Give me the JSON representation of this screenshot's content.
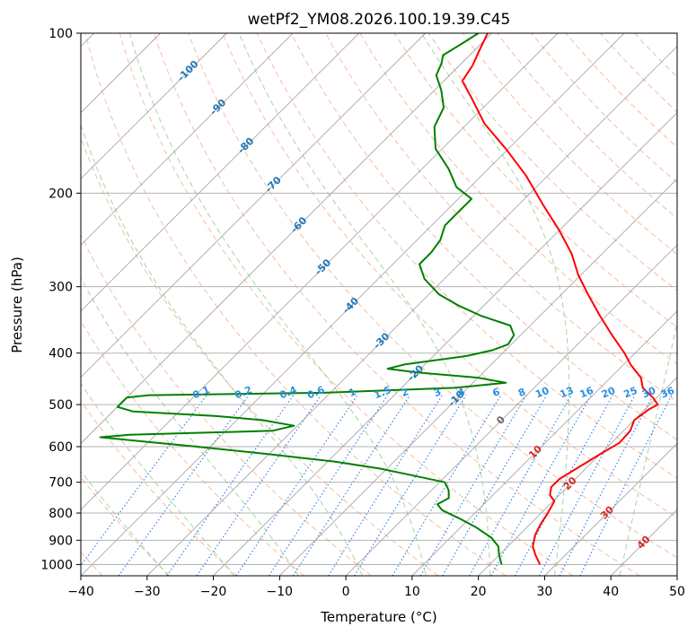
{
  "chart_data": {
    "type": "line",
    "title": "wetPf2_YM08.2026.100.19.39.C45",
    "xlabel": "Temperature (°C)",
    "ylabel": "Pressure (hPa)",
    "xlim": [
      -40,
      50
    ],
    "ylim": [
      1050,
      100
    ],
    "yscale": "log",
    "skew_note": "skew-T log-p diagram",
    "x_ticks": [
      -40,
      -30,
      -20,
      -10,
      0,
      10,
      20,
      30,
      40,
      50
    ],
    "y_ticks": [
      100,
      200,
      300,
      400,
      500,
      600,
      700,
      800,
      900,
      1000
    ],
    "isotherms_c": [
      -100,
      -90,
      -80,
      -70,
      -60,
      -50,
      -40,
      -30,
      -20,
      -10,
      0,
      10,
      20,
      30,
      40
    ],
    "isotherm_labels": [
      {
        "text": "-100",
        "t": -100,
        "p": 118,
        "color": "#1f77b4"
      },
      {
        "text": "-90",
        "t": -90,
        "p": 138,
        "color": "#1f77b4"
      },
      {
        "text": "-80",
        "t": -80,
        "p": 163,
        "color": "#1f77b4"
      },
      {
        "text": "-70",
        "t": -70,
        "p": 193,
        "color": "#1f77b4"
      },
      {
        "text": "-60",
        "t": -60,
        "p": 230,
        "color": "#1f77b4"
      },
      {
        "text": "-50",
        "t": -50,
        "p": 276,
        "color": "#1f77b4"
      },
      {
        "text": "-40",
        "t": -40,
        "p": 326,
        "color": "#1f77b4"
      },
      {
        "text": "-30",
        "t": -30,
        "p": 380,
        "color": "#1f77b4"
      },
      {
        "text": "-20",
        "t": -20,
        "p": 437,
        "color": "#1f77b4"
      },
      {
        "text": "-10",
        "t": -10,
        "p": 488,
        "color": "#1f77b4"
      },
      {
        "text": "0",
        "t": 0,
        "p": 536,
        "color": "#666666"
      },
      {
        "text": "10",
        "t": 10,
        "p": 615,
        "color": "#d62728"
      },
      {
        "text": "20",
        "t": 20,
        "p": 705,
        "color": "#d62728"
      },
      {
        "text": "30",
        "t": 30,
        "p": 800,
        "color": "#d62728"
      },
      {
        "text": "40",
        "t": 40,
        "p": 910,
        "color": "#d62728"
      }
    ],
    "mixing_ratio_labels": [
      "0.1",
      "0.2",
      "0.4",
      "0.6",
      "1",
      "1.5",
      "2",
      "3",
      "4",
      "6",
      "8",
      "10",
      "13",
      "16",
      "20",
      "25",
      "30",
      "36"
    ],
    "mixing_ratios_gkg": [
      0.1,
      0.2,
      0.4,
      0.6,
      1,
      1.5,
      2,
      3,
      4,
      6,
      8,
      10,
      13,
      16,
      20,
      25,
      30,
      36
    ],
    "dry_adiabats_theta_c": [
      -40,
      -30,
      -20,
      -10,
      0,
      10,
      20,
      30,
      40,
      50,
      60,
      70,
      80,
      90,
      100,
      110,
      120,
      130,
      140,
      150,
      160,
      170,
      180
    ],
    "moist_adiabats_c": [
      -30,
      -20,
      -10,
      0,
      10,
      20,
      30,
      40
    ],
    "series": [
      {
        "name": "Temperature",
        "color": "#ff0000",
        "points": [
          {
            "p": 1000,
            "t": 27.6
          },
          {
            "p": 960,
            "t": 25.5
          },
          {
            "p": 925,
            "t": 23.8
          },
          {
            "p": 880,
            "t": 22.4
          },
          {
            "p": 840,
            "t": 21.6
          },
          {
            "p": 800,
            "t": 21.0
          },
          {
            "p": 760,
            "t": 20.2
          },
          {
            "p": 740,
            "t": 18.6
          },
          {
            "p": 715,
            "t": 17.6
          },
          {
            "p": 690,
            "t": 17.6
          },
          {
            "p": 660,
            "t": 18.6
          },
          {
            "p": 620,
            "t": 20.0
          },
          {
            "p": 590,
            "t": 21.2
          },
          {
            "p": 560,
            "t": 21.0
          },
          {
            "p": 535,
            "t": 20.0
          },
          {
            "p": 510,
            "t": 20.6
          },
          {
            "p": 500,
            "t": 21.2
          },
          {
            "p": 485,
            "t": 19.4
          },
          {
            "p": 465,
            "t": 16.4
          },
          {
            "p": 445,
            "t": 14.6
          },
          {
            "p": 420,
            "t": 11.0
          },
          {
            "p": 400,
            "t": 8.4
          },
          {
            "p": 370,
            "t": 3.8
          },
          {
            "p": 340,
            "t": -1.0
          },
          {
            "p": 310,
            "t": -6.0
          },
          {
            "p": 285,
            "t": -10.4
          },
          {
            "p": 260,
            "t": -14.6
          },
          {
            "p": 235,
            "t": -20.0
          },
          {
            "p": 210,
            "t": -26.4
          },
          {
            "p": 185,
            "t": -33.4
          },
          {
            "p": 165,
            "t": -40.4
          },
          {
            "p": 148,
            "t": -47.4
          },
          {
            "p": 133,
            "t": -53.0
          },
          {
            "p": 123,
            "t": -57.2
          },
          {
            "p": 115,
            "t": -58.0
          },
          {
            "p": 108,
            "t": -59.2
          },
          {
            "p": 100,
            "t": -60.6
          }
        ]
      },
      {
        "name": "Dewpoint",
        "color": "#008000",
        "points": [
          {
            "p": 1000,
            "t": 21.8
          },
          {
            "p": 960,
            "t": 20.0
          },
          {
            "p": 925,
            "t": 18.6
          },
          {
            "p": 890,
            "t": 16.2
          },
          {
            "p": 850,
            "t": 12.2
          },
          {
            "p": 820,
            "t": 8.6
          },
          {
            "p": 790,
            "t": 4.6
          },
          {
            "p": 770,
            "t": 3.0
          },
          {
            "p": 750,
            "t": 3.8
          },
          {
            "p": 725,
            "t": 2.6
          },
          {
            "p": 700,
            "t": 0.8
          },
          {
            "p": 680,
            "t": -5.0
          },
          {
            "p": 660,
            "t": -11.0
          },
          {
            "p": 640,
            "t": -19.0
          },
          {
            "p": 620,
            "t": -30.0
          },
          {
            "p": 600,
            "t": -42.0
          },
          {
            "p": 585,
            "t": -52.0
          },
          {
            "p": 576,
            "t": -58.0
          },
          {
            "p": 570,
            "t": -54.0
          },
          {
            "p": 560,
            "t": -33.0
          },
          {
            "p": 548,
            "t": -30.5
          },
          {
            "p": 535,
            "t": -36.0
          },
          {
            "p": 525,
            "t": -44.0
          },
          {
            "p": 515,
            "t": -57.0
          },
          {
            "p": 505,
            "t": -60.0
          },
          {
            "p": 495,
            "t": -60.0
          },
          {
            "p": 485,
            "t": -60.0
          },
          {
            "p": 480,
            "t": -57.0
          },
          {
            "p": 475,
            "t": -31.0
          },
          {
            "p": 465,
            "t": -12.0
          },
          {
            "p": 455,
            "t": -5.0
          },
          {
            "p": 445,
            "t": -10.0
          },
          {
            "p": 435,
            "t": -20.0
          },
          {
            "p": 428,
            "t": -25.0
          },
          {
            "p": 420,
            "t": -23.0
          },
          {
            "p": 405,
            "t": -15.0
          },
          {
            "p": 395,
            "t": -12.0
          },
          {
            "p": 385,
            "t": -10.5
          },
          {
            "p": 370,
            "t": -11.0
          },
          {
            "p": 355,
            "t": -13.0
          },
          {
            "p": 340,
            "t": -19.0
          },
          {
            "p": 325,
            "t": -24.0
          },
          {
            "p": 310,
            "t": -28.5
          },
          {
            "p": 290,
            "t": -33.0
          },
          {
            "p": 272,
            "t": -36.0
          },
          {
            "p": 258,
            "t": -36.0
          },
          {
            "p": 245,
            "t": -36.5
          },
          {
            "p": 230,
            "t": -38.0
          },
          {
            "p": 218,
            "t": -38.0
          },
          {
            "p": 205,
            "t": -38.0
          },
          {
            "p": 195,
            "t": -42.0
          },
          {
            "p": 180,
            "t": -46.0
          },
          {
            "p": 165,
            "t": -51.0
          },
          {
            "p": 150,
            "t": -54.5
          },
          {
            "p": 138,
            "t": -56.0
          },
          {
            "p": 128,
            "t": -59.0
          },
          {
            "p": 120,
            "t": -62.0
          },
          {
            "p": 114,
            "t": -63.0
          },
          {
            "p": 110,
            "t": -64.0
          },
          {
            "p": 105,
            "t": -63.0
          },
          {
            "p": 100,
            "t": -62.0
          }
        ]
      }
    ],
    "colors": {
      "dry_adiabat": "#f4a582",
      "moist_adiabat": "#8bc48a",
      "mixing_ratio": "#1f77e4",
      "isotherm": "#9a9a9a",
      "isobar": "#b3b3b3",
      "dry_adiabat_warm": "#c8a67a"
    }
  }
}
